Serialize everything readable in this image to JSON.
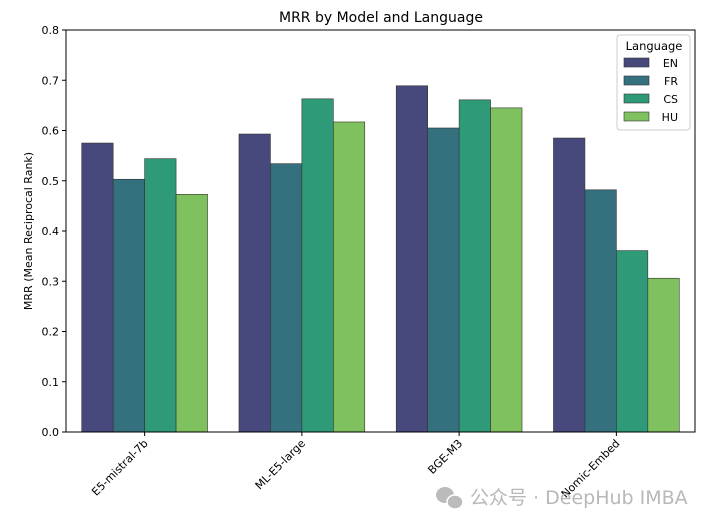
{
  "chart_data": {
    "type": "bar",
    "title": "MRR by Model and Language",
    "xlabel": "",
    "ylabel": "MRR  (Mean Reciprocal Rank)",
    "ylim": [
      0,
      0.8
    ],
    "yticks": [
      "0.0",
      "0.1",
      "0.2",
      "0.3",
      "0.4",
      "0.5",
      "0.6",
      "0.7",
      "0.8"
    ],
    "categories": [
      "E5-mistral-7b",
      "ML-E5-large",
      "BGE-M3",
      "Nomic-Embed"
    ],
    "legend": {
      "title": "Language",
      "placement": "top-right"
    },
    "grid": false,
    "series": [
      {
        "name": "EN",
        "color": "#47487c",
        "values": [
          0.575,
          0.593,
          0.689,
          0.585
        ]
      },
      {
        "name": "FR",
        "color": "#35707f",
        "values": [
          0.503,
          0.534,
          0.605,
          0.482
        ]
      },
      {
        "name": "CS",
        "color": "#2f9a78",
        "values": [
          0.544,
          0.663,
          0.661,
          0.361
        ]
      },
      {
        "name": "HU",
        "color": "#7fc15f",
        "values": [
          0.473,
          0.617,
          0.645,
          0.306
        ]
      }
    ]
  },
  "watermark": {
    "text": "公众号 · DeepHub IMBA",
    "icon": "wechat-icon"
  }
}
